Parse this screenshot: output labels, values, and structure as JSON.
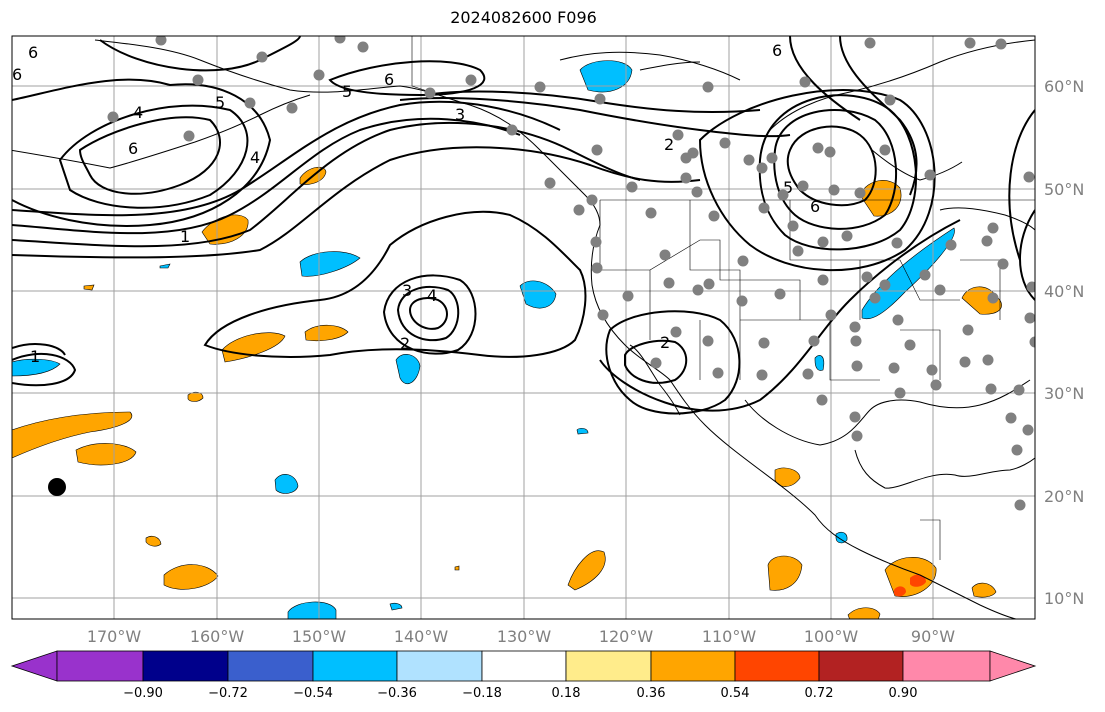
{
  "title": "2024082600 F096",
  "longitude_labels": [
    "170°W",
    "160°W",
    "150°W",
    "140°W",
    "130°W",
    "120°W",
    "110°W",
    "100°W",
    "90°W"
  ],
  "latitude_labels": [
    "60°N",
    "50°N",
    "40°N",
    "30°N",
    "20°N",
    "10°N"
  ],
  "colorbar": {
    "tick_labels": [
      "−0.90",
      "−0.72",
      "−0.54",
      "−0.36",
      "−0.18",
      "0.18",
      "0.36",
      "0.54",
      "0.72",
      "0.90"
    ],
    "colors": [
      "#9932CC",
      "#00008B",
      "#3A5FCD",
      "#00BFFF",
      "#B0E2FF",
      "#FFFFFF",
      "#FFEC8B",
      "#FFA500",
      "#FF4500",
      "#B22222",
      "#FF88AA"
    ]
  },
  "contour_labels": [
    "6",
    "5",
    "4",
    "6",
    "5",
    "6",
    "3",
    "4",
    "2",
    "6",
    "5",
    "6",
    "1",
    "3",
    "4",
    "2",
    "2",
    "1",
    "6"
  ],
  "colors": {
    "positive": "#FFA500",
    "negative": "#00BFFF",
    "stations": "#808080"
  }
}
